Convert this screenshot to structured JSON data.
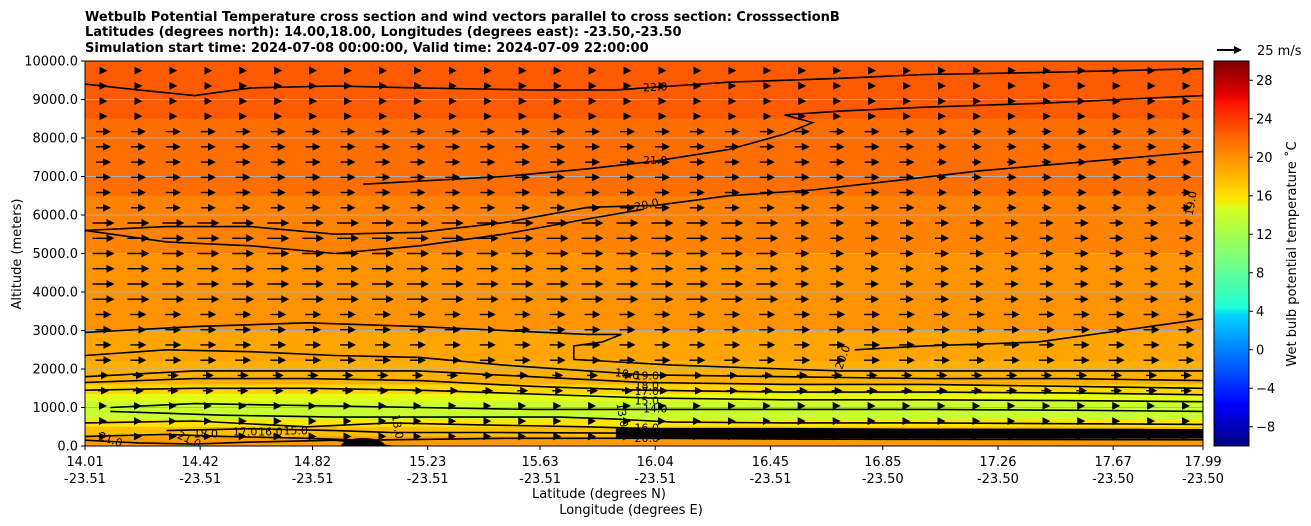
{
  "chart_data": {
    "type": "contour",
    "title_lines": [
      "Wetbulb Potential Temperature cross section and wind vectors parallel to cross section: CrosssectionB",
      "Latitudes (degrees north): 14.00,18.00, Longitudes (degrees east): -23.50,-23.50",
      "Simulation start time: 2024-07-08 00:00:00, Valid time: 2024-07-09 22:00:00"
    ],
    "ylabel": "Altitude (meters)",
    "xlabel_lat": "Latitude (degrees N)",
    "xlabel_lon": "Longitude (degrees E)",
    "ylim": [
      0,
      10000
    ],
    "xlim": [
      14.01,
      17.99
    ],
    "y_ticks": [
      "0.0",
      "1000.0",
      "2000.0",
      "3000.0",
      "4000.0",
      "5000.0",
      "6000.0",
      "7000.0",
      "8000.0",
      "9000.0",
      "10000.0"
    ],
    "x_ticks": [
      {
        "lat": "14.01",
        "lon": "-23.51",
        "value": 14.01
      },
      {
        "lat": "14.42",
        "lon": "-23.51",
        "value": 14.42
      },
      {
        "lat": "14.82",
        "lon": "-23.51",
        "value": 14.82
      },
      {
        "lat": "15.23",
        "lon": "-23.51",
        "value": 15.23
      },
      {
        "lat": "15.63",
        "lon": "-23.51",
        "value": 15.63
      },
      {
        "lat": "16.04",
        "lon": "-23.51",
        "value": 16.04
      },
      {
        "lat": "16.45",
        "lon": "-23.51",
        "value": 16.45
      },
      {
        "lat": "16.85",
        "lon": "-23.50",
        "value": 16.85
      },
      {
        "lat": "17.26",
        "lon": "-23.50",
        "value": 17.26
      },
      {
        "lat": "17.67",
        "lon": "-23.50",
        "value": 17.67
      },
      {
        "lat": "17.99",
        "lon": "-23.50",
        "value": 17.99
      }
    ],
    "colorbar": {
      "label": "Wet bulb potential temperature ˚C",
      "range": [
        -10,
        30
      ],
      "ticks": [
        {
          "value": -8,
          "label": "−8"
        },
        {
          "value": -4,
          "label": "−4"
        },
        {
          "value": 0,
          "label": "0"
        },
        {
          "value": 4,
          "label": "4"
        },
        {
          "value": 8,
          "label": "8"
        },
        {
          "value": 12,
          "label": "12"
        },
        {
          "value": 16,
          "label": "16"
        },
        {
          "value": 20,
          "label": "20"
        },
        {
          "value": 24,
          "label": "24"
        },
        {
          "value": 28,
          "label": "28"
        }
      ]
    },
    "wind_key": {
      "label": "25 m/s",
      "speed": 25
    },
    "contour_labels": [
      {
        "text": "22.0",
        "value": 22,
        "x": 16.04,
        "y": 9300,
        "angle": -3
      },
      {
        "text": "21.0",
        "value": 21,
        "x": 16.04,
        "y": 7400,
        "angle": 0
      },
      {
        "text": "20.0",
        "value": 20,
        "x": 16.01,
        "y": 6250,
        "angle": -12
      },
      {
        "text": "20.0",
        "value": 20,
        "x": 16.71,
        "y": 2300,
        "angle": -70
      },
      {
        "text": "19.0",
        "value": 19,
        "x": 17.95,
        "y": 6300,
        "angle": -80
      },
      {
        "text": "19.0",
        "value": 19,
        "x": 15.94,
        "y": 1850,
        "angle": 8
      },
      {
        "text": "19.0",
        "value": 19,
        "x": 16.01,
        "y": 1800,
        "angle": 0
      },
      {
        "text": "18.0",
        "value": 18,
        "x": 16.01,
        "y": 1550,
        "angle": 0
      },
      {
        "text": "17.0",
        "value": 17,
        "x": 16.01,
        "y": 1400,
        "angle": 0
      },
      {
        "text": "15.0",
        "value": 15,
        "x": 16.01,
        "y": 1150,
        "angle": 0
      },
      {
        "text": "14.0",
        "value": 14,
        "x": 16.04,
        "y": 950,
        "angle": 0
      },
      {
        "text": "13.0",
        "value": 13,
        "x": 15.92,
        "y": 800,
        "angle": 80
      },
      {
        "text": "13.0",
        "value": 13,
        "x": 15.12,
        "y": 500,
        "angle": 80
      },
      {
        "text": "16.0",
        "value": 16,
        "x": 16.01,
        "y": 450,
        "angle": 0
      },
      {
        "text": "18.0",
        "value": 18,
        "x": 16.01,
        "y": 330,
        "angle": 0
      },
      {
        "text": "20.0",
        "value": 20,
        "x": 16.01,
        "y": 180,
        "angle": 0
      },
      {
        "text": "21.0",
        "value": 21,
        "x": 14.1,
        "y": 150,
        "angle": 20
      },
      {
        "text": "21.0",
        "value": 21,
        "x": 14.38,
        "y": 150,
        "angle": 25
      },
      {
        "text": "18.0",
        "value": 18,
        "x": 14.44,
        "y": 300,
        "angle": 0
      },
      {
        "text": "17.0",
        "value": 17,
        "x": 14.58,
        "y": 350,
        "angle": 0
      },
      {
        "text": "16.0",
        "value": 16,
        "x": 14.67,
        "y": 350,
        "angle": 0
      },
      {
        "text": "15.0",
        "value": 15,
        "x": 14.76,
        "y": 380,
        "angle": 0
      }
    ],
    "grid": "horizontal"
  }
}
